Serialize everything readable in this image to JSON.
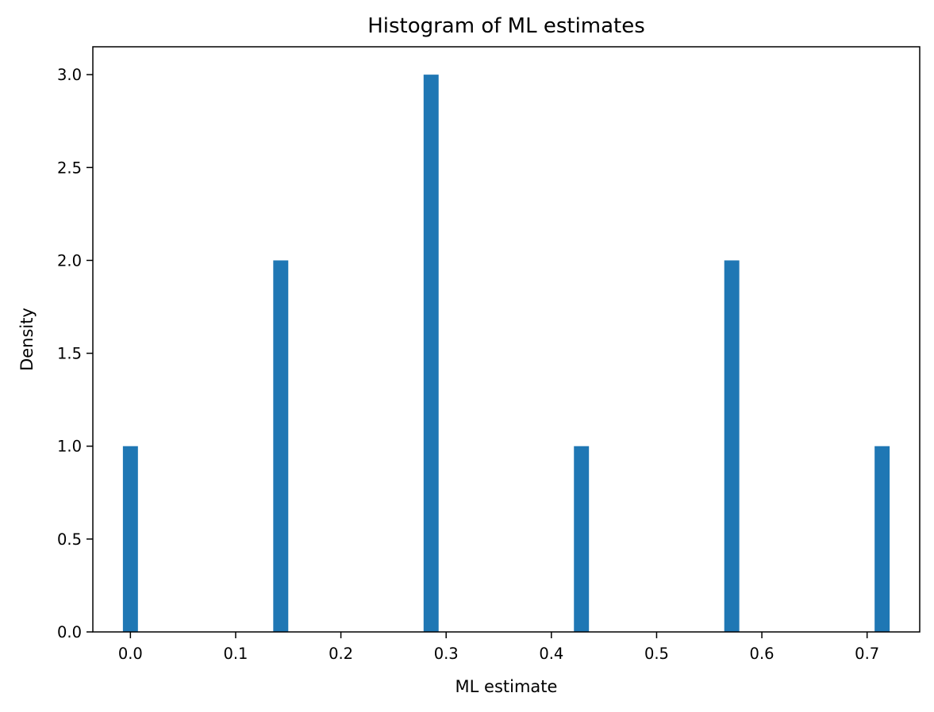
{
  "chart_data": {
    "type": "bar",
    "title": "Histogram of ML estimates",
    "xlabel": "ML estimate",
    "ylabel": "Density",
    "bin_width": 0.01428571,
    "bins": [
      {
        "x": 0.0,
        "density": 1.0
      },
      {
        "x": 0.142857,
        "density": 2.0
      },
      {
        "x": 0.285714,
        "density": 3.0
      },
      {
        "x": 0.428571,
        "density": 1.0
      },
      {
        "x": 0.571429,
        "density": 2.0
      },
      {
        "x": 0.714286,
        "density": 1.0
      }
    ],
    "xlim": [
      -0.0357,
      0.75
    ],
    "ylim": [
      0,
      3.15
    ],
    "xticks": [
      0.0,
      0.1,
      0.2,
      0.3,
      0.4,
      0.5,
      0.6,
      0.7
    ],
    "xtick_labels": [
      "0.0",
      "0.1",
      "0.2",
      "0.3",
      "0.4",
      "0.5",
      "0.6",
      "0.7"
    ],
    "yticks": [
      0.0,
      0.5,
      1.0,
      1.5,
      2.0,
      2.5,
      3.0
    ],
    "ytick_labels": [
      "0.0",
      "0.5",
      "1.0",
      "1.5",
      "2.0",
      "2.5",
      "3.0"
    ],
    "grid": false,
    "legend": "none",
    "bar_color": "#1f77b4"
  }
}
